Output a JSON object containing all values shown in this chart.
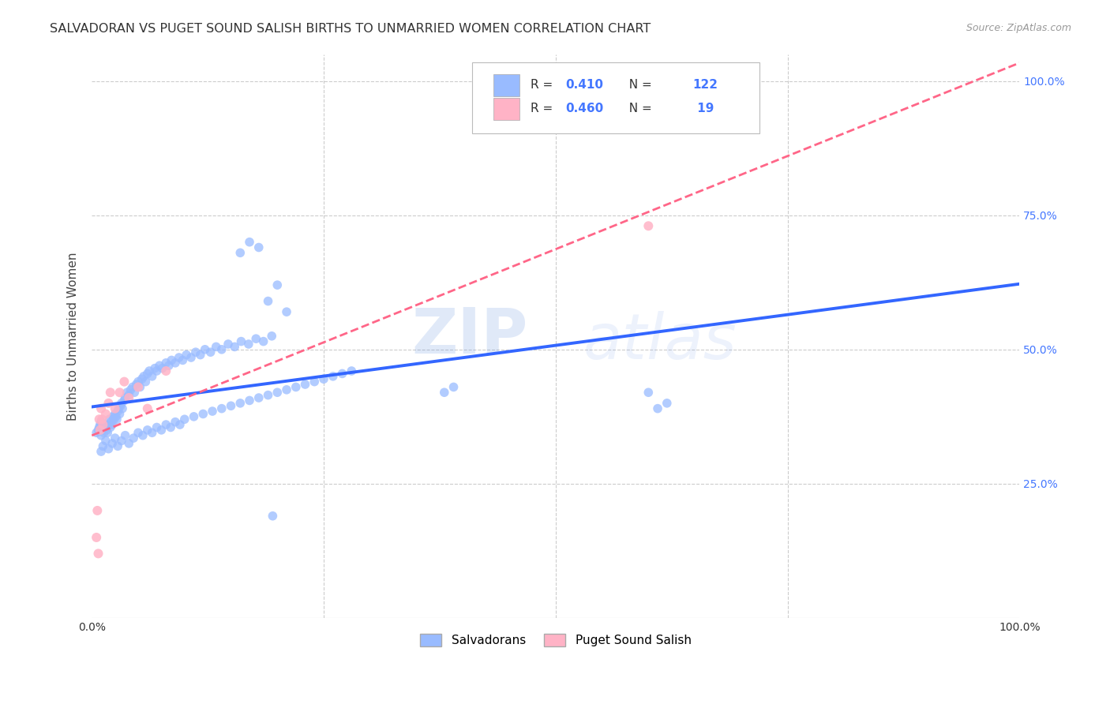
{
  "title": "SALVADORAN VS PUGET SOUND SALISH BIRTHS TO UNMARRIED WOMEN CORRELATION CHART",
  "source": "Source: ZipAtlas.com",
  "ylabel": "Births to Unmarried Women",
  "blue_R": 0.41,
  "blue_N": 122,
  "pink_R": 0.46,
  "pink_N": 19,
  "blue_color": "#99BBFF",
  "pink_color": "#FFB3C6",
  "blue_line_color": "#3366FF",
  "pink_line_color": "#FF6688",
  "watermark_zip": "ZIP",
  "watermark_atlas": "atlas",
  "background_color": "#FFFFFF",
  "grid_color": "#CCCCCC",
  "title_color": "#333333",
  "axis_label_color": "#444444",
  "right_tick_color": "#4477FF",
  "bottom_tick_color": "#333333",
  "blue_scatter": {
    "x": [
      0.005,
      0.007,
      0.008,
      0.009,
      0.01,
      0.01,
      0.011,
      0.012,
      0.013,
      0.014,
      0.015,
      0.016,
      0.017,
      0.018,
      0.019,
      0.02,
      0.021,
      0.022,
      0.023,
      0.024,
      0.025,
      0.026,
      0.027,
      0.028,
      0.029,
      0.03,
      0.031,
      0.032,
      0.033,
      0.035,
      0.036,
      0.038,
      0.04,
      0.042,
      0.044,
      0.046,
      0.048,
      0.05,
      0.052,
      0.054,
      0.056,
      0.058,
      0.06,
      0.062,
      0.065,
      0.068,
      0.07,
      0.073,
      0.076,
      0.08,
      0.083,
      0.086,
      0.09,
      0.094,
      0.098,
      0.102,
      0.107,
      0.112,
      0.117,
      0.122,
      0.128,
      0.134,
      0.14,
      0.147,
      0.154,
      0.161,
      0.169,
      0.177,
      0.185,
      0.194,
      0.01,
      0.012,
      0.015,
      0.018,
      0.022,
      0.025,
      0.028,
      0.032,
      0.036,
      0.04,
      0.045,
      0.05,
      0.055,
      0.06,
      0.065,
      0.07,
      0.075,
      0.08,
      0.085,
      0.09,
      0.095,
      0.1,
      0.11,
      0.12,
      0.13,
      0.14,
      0.15,
      0.16,
      0.17,
      0.18,
      0.19,
      0.2,
      0.21,
      0.22,
      0.23,
      0.24,
      0.25,
      0.26,
      0.27,
      0.28,
      0.38,
      0.39,
      0.19,
      0.2,
      0.21,
      0.16,
      0.17,
      0.18,
      0.6,
      0.61,
      0.62,
      0.195
    ],
    "y": [
      0.345,
      0.35,
      0.355,
      0.36,
      0.34,
      0.365,
      0.355,
      0.35,
      0.345,
      0.36,
      0.355,
      0.35,
      0.345,
      0.36,
      0.37,
      0.355,
      0.365,
      0.36,
      0.375,
      0.37,
      0.38,
      0.375,
      0.37,
      0.385,
      0.39,
      0.38,
      0.395,
      0.4,
      0.39,
      0.405,
      0.41,
      0.42,
      0.415,
      0.425,
      0.43,
      0.42,
      0.435,
      0.44,
      0.43,
      0.445,
      0.45,
      0.44,
      0.455,
      0.46,
      0.45,
      0.465,
      0.46,
      0.47,
      0.465,
      0.475,
      0.47,
      0.48,
      0.475,
      0.485,
      0.48,
      0.49,
      0.485,
      0.495,
      0.49,
      0.5,
      0.495,
      0.505,
      0.5,
      0.51,
      0.505,
      0.515,
      0.51,
      0.52,
      0.515,
      0.525,
      0.31,
      0.32,
      0.33,
      0.315,
      0.325,
      0.335,
      0.32,
      0.33,
      0.34,
      0.325,
      0.335,
      0.345,
      0.34,
      0.35,
      0.345,
      0.355,
      0.35,
      0.36,
      0.355,
      0.365,
      0.36,
      0.37,
      0.375,
      0.38,
      0.385,
      0.39,
      0.395,
      0.4,
      0.405,
      0.41,
      0.415,
      0.42,
      0.425,
      0.43,
      0.435,
      0.44,
      0.445,
      0.45,
      0.455,
      0.46,
      0.42,
      0.43,
      0.59,
      0.62,
      0.57,
      0.68,
      0.7,
      0.69,
      0.42,
      0.39,
      0.4,
      0.19
    ]
  },
  "pink_scatter": {
    "x": [
      0.005,
      0.006,
      0.007,
      0.008,
      0.009,
      0.01,
      0.011,
      0.012,
      0.015,
      0.018,
      0.02,
      0.025,
      0.03,
      0.035,
      0.04,
      0.05,
      0.06,
      0.08,
      0.6
    ],
    "y": [
      0.15,
      0.2,
      0.12,
      0.37,
      0.35,
      0.39,
      0.37,
      0.36,
      0.38,
      0.4,
      0.42,
      0.39,
      0.42,
      0.44,
      0.41,
      0.43,
      0.39,
      0.46,
      0.73
    ]
  },
  "xlim": [
    0.0,
    1.0
  ],
  "ylim": [
    0.0,
    1.05
  ],
  "x_ticks": [
    0.0,
    0.25,
    0.5,
    0.75,
    1.0
  ],
  "x_tick_labels": [
    "0.0%",
    "",
    "",
    "",
    "100.0%"
  ],
  "y_ticks": [
    0.0,
    0.25,
    0.5,
    0.75,
    1.0
  ],
  "y_tick_labels_right": [
    "",
    "25.0%",
    "50.0%",
    "75.0%",
    "100.0%"
  ]
}
